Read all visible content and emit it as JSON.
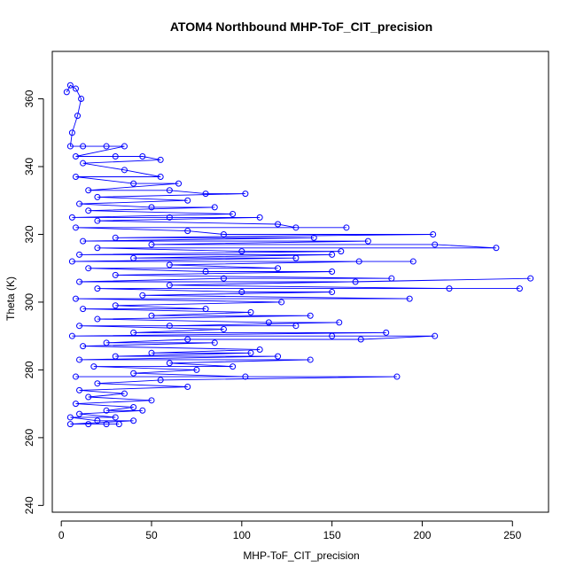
{
  "colors": {
    "series": "#0000ff",
    "axis": "#000000",
    "background": "#ffffff"
  },
  "chart_data": {
    "type": "line",
    "marker": "open-circle",
    "title": "ATOM4 Northbound MHP-ToF_CIT_precision",
    "xlabel": "MHP-ToF_CIT_precision",
    "ylabel": "Theta (K)",
    "xlim": [
      -5,
      270
    ],
    "ylim": [
      238,
      374
    ],
    "xticks": [
      0,
      50,
      100,
      150,
      200,
      250
    ],
    "yticks": [
      240,
      260,
      280,
      300,
      320,
      340,
      360
    ],
    "grid": false,
    "series": [
      {
        "points": [
          [
            3,
            362
          ],
          [
            5,
            364
          ],
          [
            8,
            363
          ],
          [
            11,
            360
          ],
          [
            9,
            355
          ],
          [
            6,
            350
          ],
          [
            5,
            346
          ],
          [
            12,
            346
          ],
          [
            25,
            346
          ],
          [
            35,
            346
          ],
          [
            8,
            343
          ],
          [
            30,
            343
          ],
          [
            45,
            343
          ],
          [
            55,
            342
          ],
          [
            12,
            341
          ],
          [
            35,
            339
          ],
          [
            55,
            337
          ],
          [
            8,
            337
          ],
          [
            40,
            335
          ],
          [
            65,
            335
          ],
          [
            15,
            333
          ],
          [
            60,
            333
          ],
          [
            80,
            332
          ],
          [
            102,
            332
          ],
          [
            20,
            331
          ],
          [
            70,
            330
          ],
          [
            10,
            329
          ],
          [
            50,
            328
          ],
          [
            85,
            328
          ],
          [
            15,
            327
          ],
          [
            95,
            326
          ],
          [
            6,
            325
          ],
          [
            60,
            325
          ],
          [
            110,
            325
          ],
          [
            20,
            324
          ],
          [
            120,
            323
          ],
          [
            130,
            322
          ],
          [
            158,
            322
          ],
          [
            8,
            322
          ],
          [
            70,
            321
          ],
          [
            90,
            320
          ],
          [
            206,
            320
          ],
          [
            30,
            319
          ],
          [
            140,
            319
          ],
          [
            12,
            318
          ],
          [
            170,
            318
          ],
          [
            50,
            317
          ],
          [
            207,
            317
          ],
          [
            241,
            316
          ],
          [
            20,
            316
          ],
          [
            100,
            315
          ],
          [
            155,
            315
          ],
          [
            10,
            314
          ],
          [
            150,
            314
          ],
          [
            40,
            313
          ],
          [
            130,
            313
          ],
          [
            6,
            312
          ],
          [
            195,
            312
          ],
          [
            165,
            312
          ],
          [
            60,
            311
          ],
          [
            120,
            310
          ],
          [
            15,
            310
          ],
          [
            80,
            309
          ],
          [
            150,
            309
          ],
          [
            30,
            308
          ],
          [
            183,
            307
          ],
          [
            90,
            307
          ],
          [
            10,
            306
          ],
          [
            163,
            306
          ],
          [
            260,
            307
          ],
          [
            60,
            305
          ],
          [
            215,
            304
          ],
          [
            254,
            304
          ],
          [
            20,
            304
          ],
          [
            100,
            303
          ],
          [
            150,
            303
          ],
          [
            45,
            302
          ],
          [
            193,
            301
          ],
          [
            8,
            301
          ],
          [
            122,
            300
          ],
          [
            30,
            299
          ],
          [
            80,
            298
          ],
          [
            12,
            298
          ],
          [
            105,
            297
          ],
          [
            50,
            296
          ],
          [
            138,
            296
          ],
          [
            20,
            295
          ],
          [
            115,
            294
          ],
          [
            154,
            294
          ],
          [
            60,
            293
          ],
          [
            130,
            293
          ],
          [
            10,
            293
          ],
          [
            90,
            292
          ],
          [
            40,
            291
          ],
          [
            180,
            291
          ],
          [
            6,
            290
          ],
          [
            150,
            290
          ],
          [
            207,
            290
          ],
          [
            166,
            289
          ],
          [
            70,
            289
          ],
          [
            25,
            288
          ],
          [
            85,
            288
          ],
          [
            12,
            287
          ],
          [
            110,
            286
          ],
          [
            50,
            285
          ],
          [
            105,
            285
          ],
          [
            30,
            284
          ],
          [
            120,
            284
          ],
          [
            10,
            283
          ],
          [
            138,
            283
          ],
          [
            60,
            282
          ],
          [
            95,
            281
          ],
          [
            18,
            281
          ],
          [
            75,
            280
          ],
          [
            40,
            279
          ],
          [
            102,
            278
          ],
          [
            8,
            278
          ],
          [
            186,
            278
          ],
          [
            55,
            277
          ],
          [
            20,
            276
          ],
          [
            70,
            275
          ],
          [
            10,
            274
          ],
          [
            35,
            273
          ],
          [
            15,
            272
          ],
          [
            50,
            271
          ],
          [
            8,
            270
          ],
          [
            40,
            269
          ],
          [
            25,
            268
          ],
          [
            45,
            268
          ],
          [
            10,
            267
          ],
          [
            30,
            266
          ],
          [
            5,
            266
          ],
          [
            20,
            265
          ],
          [
            40,
            265
          ],
          [
            5,
            264
          ],
          [
            15,
            264
          ],
          [
            25,
            264
          ],
          [
            32,
            264
          ]
        ]
      }
    ]
  }
}
